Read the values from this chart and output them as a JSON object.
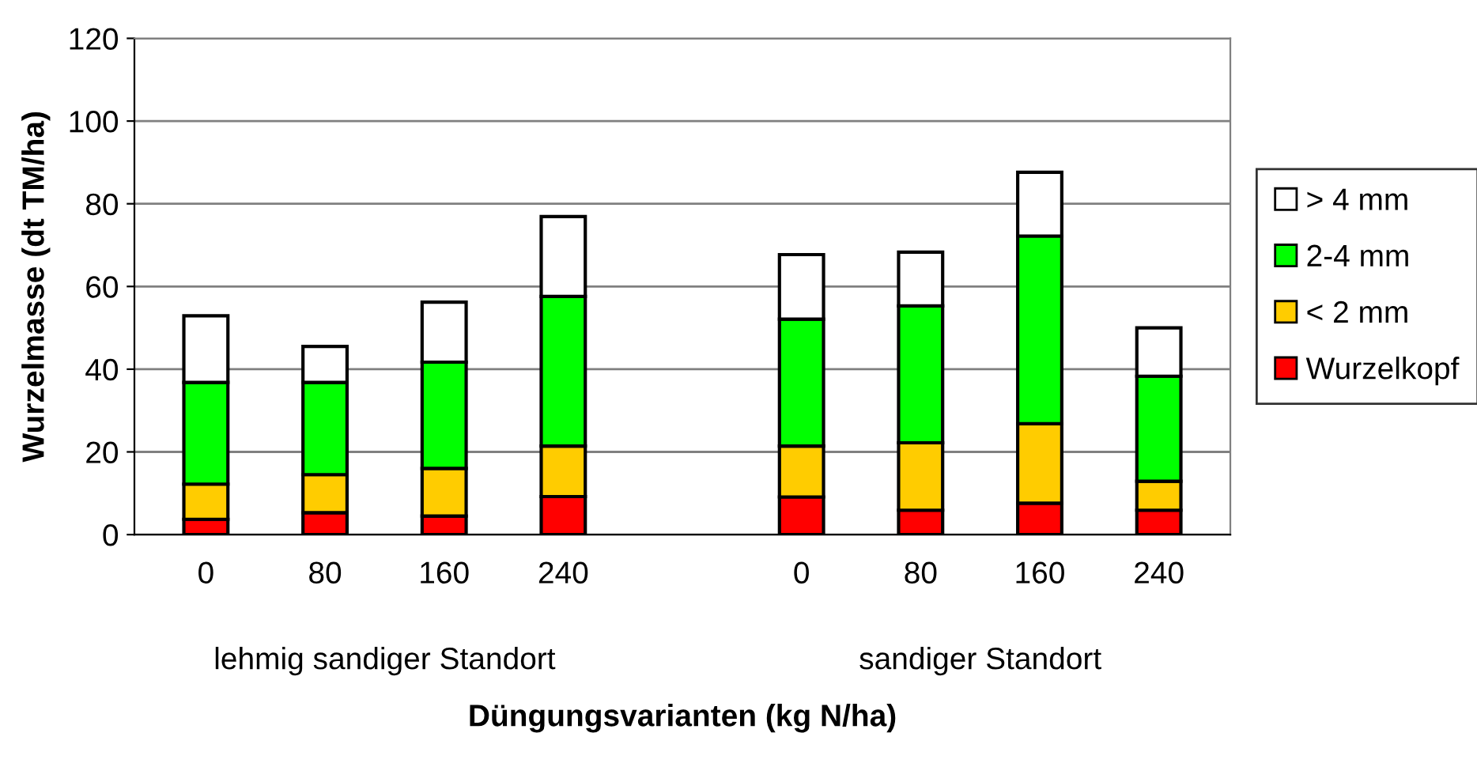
{
  "chart_data": {
    "type": "bar",
    "stacked": true,
    "ylabel": "Wurzelmasse (dt TM/ha)",
    "xlabel": "Düngungsvarianten (kg N/ha)",
    "categories": [
      "0",
      "80",
      "160",
      "240",
      null,
      "0",
      "80",
      "160",
      "240"
    ],
    "series": [
      {
        "name": "Wurzelkopf",
        "color": "#ff0000",
        "values": [
          3.7,
          5.3,
          4.5,
          9.2,
          null,
          9.1,
          5.9,
          7.6,
          5.9
        ]
      },
      {
        "name": "< 2 mm",
        "color": "#ffcc00",
        "values": [
          8.5,
          9.2,
          11.5,
          12.2,
          null,
          12.3,
          16.3,
          19.2,
          7.0
        ]
      },
      {
        "name": "2-4 mm",
        "color": "#00ff00",
        "values": [
          24.6,
          22.3,
          25.7,
          36.2,
          null,
          30.7,
          33.1,
          45.4,
          25.4
        ]
      },
      {
        "name": "> 4 mm",
        "color": "#ffffff",
        "values": [
          16.1,
          8.7,
          14.5,
          19.3,
          null,
          15.6,
          13.0,
          15.4,
          11.7
        ]
      }
    ],
    "ylim": [
      0,
      120
    ],
    "yticks": [
      0,
      20,
      40,
      60,
      80,
      100,
      120
    ],
    "grid": "y",
    "legend": "right",
    "annotations": [
      "lehmig sandiger Standort",
      "sandiger Standort"
    ]
  }
}
